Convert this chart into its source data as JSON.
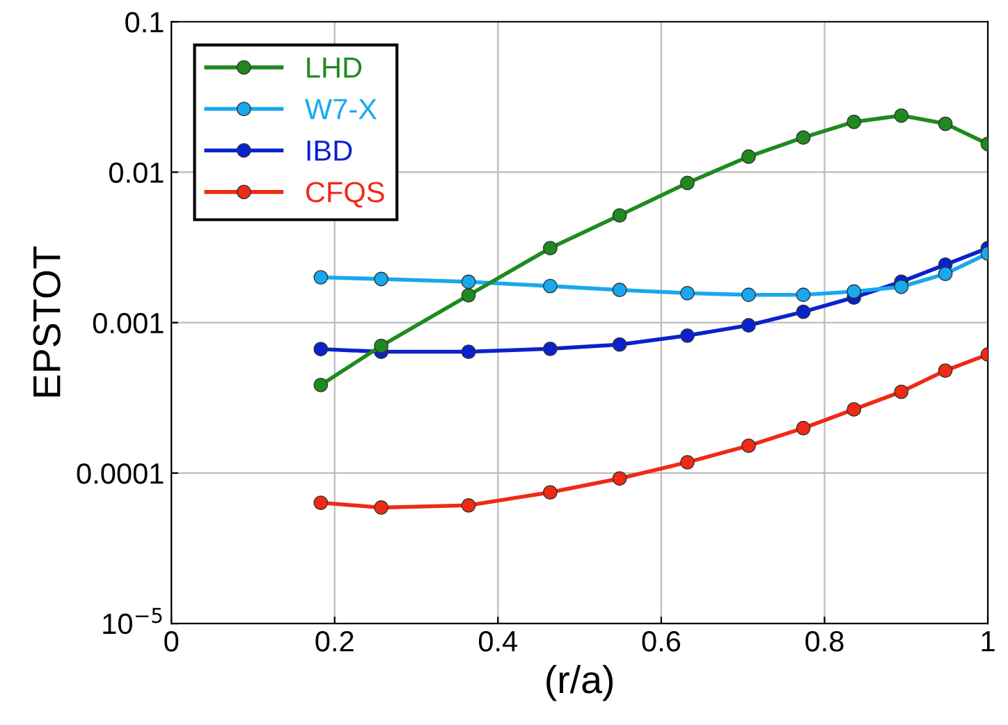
{
  "chart_data": {
    "type": "line",
    "xlabel": "(r/a)",
    "ylabel": "EPSTOT",
    "log": "y",
    "x": [
      0.183,
      0.257,
      0.364,
      0.464,
      0.549,
      0.632,
      0.707,
      0.774,
      0.836,
      0.894,
      0.948,
      1.0
    ],
    "xlim": [
      0,
      1
    ],
    "xticks": [
      0,
      0.2,
      0.4,
      0.6,
      0.8,
      1
    ],
    "ylim": [
      1e-05,
      0.1
    ],
    "yticks": [
      {
        "value": 1e-05,
        "label": "10$^{−5}$"
      },
      0.0001,
      0.001,
      0.01,
      0.1
    ],
    "grid": true,
    "legend": "top left",
    "marker": "circle",
    "line_style": "solid",
    "series": [
      {
        "name": "LHD",
        "color": "#1f8a1f",
        "values": [
          0.000385,
          0.0007,
          0.00152,
          0.00313,
          0.00516,
          0.00848,
          0.0127,
          0.017,
          0.0216,
          0.0238,
          0.021,
          0.0154
        ]
      },
      {
        "name": "W7-X",
        "color": "#18a8ee",
        "values": [
          0.002,
          0.00195,
          0.00187,
          0.00175,
          0.00165,
          0.00157,
          0.00153,
          0.00153,
          0.00161,
          0.00173,
          0.00211,
          0.00288
        ]
      },
      {
        "name": "IBD",
        "color": "#0a22cc",
        "values": [
          0.000667,
          0.00064,
          0.00064,
          0.00067,
          0.000715,
          0.00082,
          0.00096,
          0.00118,
          0.00147,
          0.00187,
          0.00243,
          0.00313
        ]
      },
      {
        "name": "CFQS",
        "color": "#f02a14",
        "values": [
          6.35e-05,
          5.9e-05,
          6.1e-05,
          7.45e-05,
          9.2e-05,
          0.000118,
          0.000152,
          0.000199,
          0.000265,
          0.000347,
          0.00048,
          0.000614
        ]
      }
    ]
  }
}
